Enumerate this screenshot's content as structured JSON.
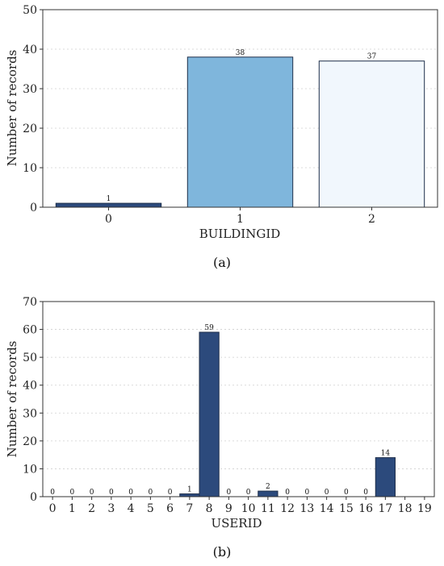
{
  "chart_data": [
    {
      "type": "bar",
      "xlabel": "BUILDINGID",
      "ylabel": "Number of records",
      "ylim": [
        0,
        50
      ],
      "yticks": [
        0,
        10,
        20,
        30,
        40,
        50
      ],
      "categories": [
        "0",
        "1",
        "2"
      ],
      "values": [
        1,
        38,
        37
      ],
      "data_labels": [
        "1",
        "38",
        "37"
      ],
      "bar_colors": [
        "#2c4a7c",
        "#7fb6dc",
        "#f1f7fd"
      ],
      "grid": true,
      "caption": "(a)"
    },
    {
      "type": "bar",
      "xlabel": "USERID",
      "ylabel": "Number of records",
      "ylim": [
        0,
        70
      ],
      "yticks": [
        0,
        10,
        20,
        30,
        40,
        50,
        60,
        70
      ],
      "categories": [
        "0",
        "1",
        "2",
        "3",
        "4",
        "5",
        "6",
        "7",
        "8",
        "9",
        "10",
        "11",
        "12",
        "13",
        "14",
        "15",
        "16",
        "17",
        "18",
        "19"
      ],
      "values": [
        0,
        0,
        0,
        0,
        0,
        0,
        0,
        1,
        59,
        0,
        0,
        2,
        0,
        0,
        0,
        0,
        0,
        14,
        null,
        null
      ],
      "data_labels": [
        "0",
        "0",
        "0",
        "0",
        "0",
        "0",
        "0",
        "1",
        "59",
        "0",
        "0",
        "2",
        "0",
        "0",
        "0",
        "0",
        "0",
        "14",
        "",
        ""
      ],
      "bar_color": "#2c4a7c",
      "grid": true,
      "caption": "(b)"
    }
  ]
}
